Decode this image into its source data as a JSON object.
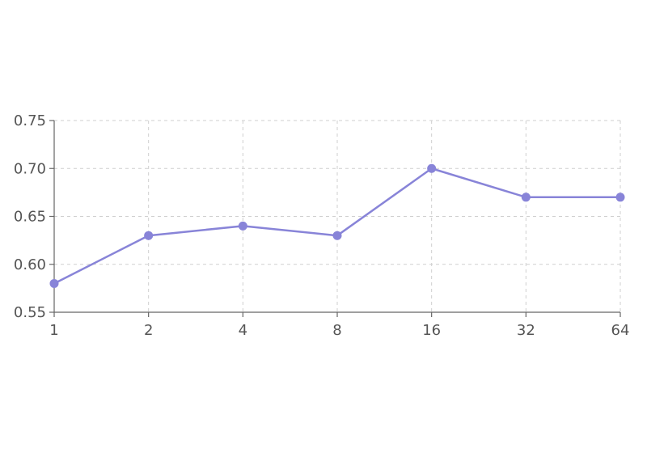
{
  "chart_data": {
    "type": "line",
    "x": [
      1,
      2,
      4,
      8,
      16,
      32,
      64
    ],
    "x_tick_labels": [
      "1",
      "2",
      "4",
      "8",
      "16",
      "32",
      "64"
    ],
    "x_scale": "log2",
    "ylim": [
      0.55,
      0.75
    ],
    "y_ticks": [
      0.55,
      0.6,
      0.65,
      0.7,
      0.75
    ],
    "y_tick_labels": [
      "0.55",
      "0.60",
      "0.65",
      "0.70",
      "0.75"
    ],
    "grid": true,
    "series": [
      {
        "values": [
          0.58,
          0.63,
          0.64,
          0.63,
          0.7,
          0.67,
          0.67
        ],
        "color": "#8884d8"
      }
    ]
  }
}
